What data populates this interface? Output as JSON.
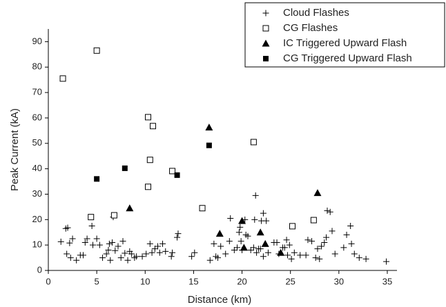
{
  "chart_data": {
    "type": "scatter",
    "x_label": "Distance (km)",
    "y_label": "Peak Current (kA)",
    "xlim": [
      0,
      36
    ],
    "ylim": [
      0,
      95
    ],
    "xticks": [
      0,
      5,
      10,
      15,
      20,
      25,
      30,
      35
    ],
    "yticks": [
      0,
      10,
      20,
      30,
      40,
      50,
      60,
      70,
      80,
      90
    ],
    "grid": false,
    "legend": "top-right",
    "series": [
      {
        "name": "Cloud Flashes",
        "color": "#000000",
        "marker": "plus",
        "x": [
          1.3,
          1.8,
          2,
          1.9,
          2.2,
          2.5,
          2.3,
          2.9,
          3.3,
          3.6,
          3.8,
          4,
          4.5,
          4.6,
          5,
          5.3,
          5.6,
          6,
          6.2,
          6.3,
          6.4,
          6.6,
          6.7,
          6.9,
          7.2,
          7.5,
          7.7,
          7.9,
          8.2,
          8.4,
          8.6,
          8.9,
          9.1,
          9.7,
          10.1,
          10.5,
          10.7,
          11,
          11.3,
          11.5,
          11.8,
          12.1,
          12.7,
          12.8,
          13.3,
          13.4,
          14.8,
          15.1,
          16.7,
          17.1,
          17.3,
          17.5,
          17.8,
          18.3,
          18.8,
          18.7,
          19.2,
          19.5,
          19.7,
          19.8,
          19.9,
          20,
          20.3,
          20.4,
          20.6,
          20.9,
          21.2,
          21.3,
          21.4,
          21.5,
          21.7,
          22,
          22.2,
          22.5,
          22.7,
          23.3,
          23.6,
          24.2,
          24.4,
          24.6,
          24.7,
          24.9,
          25.1,
          25.4,
          26,
          26.6,
          27.2,
          27.6,
          27.8,
          28.2,
          28.5,
          28.7,
          28.8,
          29.1,
          29.3,
          29.6,
          30.8,
          31.2,
          31.3,
          31.6,
          32.1,
          32.8,
          34.9,
          21.9,
          22.2,
          23.8,
          26.8,
          28,
          30.5
        ],
        "values": [
          11.3,
          16.5,
          16.8,
          6.5,
          10.8,
          12.5,
          5,
          4,
          6,
          6,
          11,
          12.5,
          17.5,
          10,
          12.5,
          10,
          5,
          6.5,
          8,
          10.5,
          4,
          11,
          21,
          7.8,
          9.5,
          5,
          11.5,
          6.8,
          4,
          7.5,
          6.5,
          5,
          5.5,
          5.5,
          6.5,
          10.5,
          7,
          8.5,
          9.5,
          7,
          10.5,
          7.5,
          5.5,
          7,
          13,
          14.5,
          5.5,
          7,
          4,
          10.5,
          5.5,
          5,
          9.5,
          6.5,
          20.5,
          11.5,
          8,
          9,
          15,
          17,
          11.5,
          8,
          20,
          14,
          13.5,
          8,
          9,
          20,
          29.5,
          7,
          8.5,
          19.5,
          22.5,
          19.5,
          7,
          11,
          11,
          9,
          9,
          12,
          6,
          10,
          4.5,
          7,
          6,
          6,
          11.5,
          5,
          8.5,
          9.5,
          11,
          13,
          23.5,
          23,
          15.5,
          6.5,
          14,
          17.5,
          10.5,
          6.5,
          5,
          4.5,
          3.5,
          8.5,
          5.5,
          6.5,
          12,
          4.5,
          9
        ]
      },
      {
        "name": "CG Flashes",
        "color": "#000000",
        "marker": "open-square",
        "x": [
          1.5,
          5,
          4.4,
          6.8,
          10.3,
          10.8,
          10.5,
          10.3,
          12.8,
          15.9,
          21.2,
          25.2,
          27.4
        ],
        "values": [
          75.5,
          86.5,
          21,
          21.7,
          60.3,
          56.8,
          43.5,
          32.9,
          39.1,
          24.5,
          50.5,
          17.4,
          19.8
        ]
      },
      {
        "name": "IC Triggered Upward Flash",
        "color": "#000000",
        "marker": "triangle",
        "x": [
          8.4,
          16.6,
          17.7,
          20,
          20.2,
          21.9,
          22.4,
          24,
          27.8
        ],
        "values": [
          24.5,
          56.3,
          14.5,
          19.5,
          9,
          15,
          10.5,
          7,
          30.5
        ]
      },
      {
        "name": "CG Triggered Upward Flash",
        "color": "#000000",
        "marker": "square",
        "x": [
          5,
          7.9,
          13.3,
          16.6
        ],
        "values": [
          36,
          40.2,
          37.5,
          49.2
        ]
      }
    ]
  }
}
